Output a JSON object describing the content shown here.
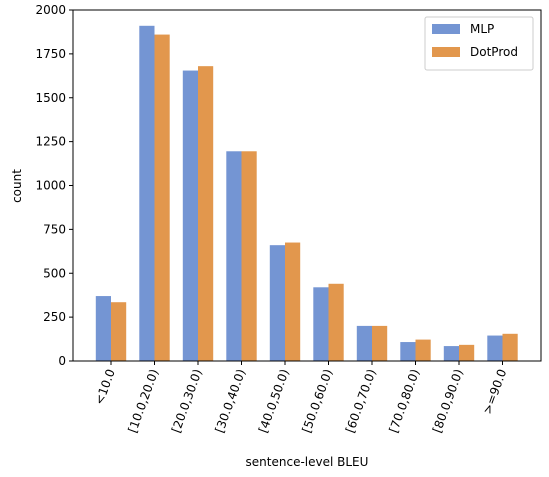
{
  "chart_data": {
    "type": "bar",
    "xlabel": "sentence-level BLEU",
    "ylabel": "count",
    "ylim": [
      0,
      2000
    ],
    "yticks": [
      0,
      250,
      500,
      750,
      1000,
      1250,
      1500,
      1750,
      2000
    ],
    "categories": [
      "<10.0",
      "[10.0,20.0)",
      "[20.0,30.0)",
      "[30.0,40.0)",
      "[40.0,50.0)",
      "[50.0,60.0)",
      "[60.0,70.0)",
      "[70.0,80.0)",
      "[80.0,90.0)",
      ">=90.0"
    ],
    "series": [
      {
        "name": "MLP",
        "color": "#7495d3",
        "values": [
          370,
          1910,
          1655,
          1195,
          660,
          420,
          200,
          108,
          85,
          145
        ]
      },
      {
        "name": "DotProd",
        "color": "#e2974d",
        "values": [
          335,
          1860,
          1680,
          1195,
          675,
          440,
          200,
          122,
          92,
          155
        ]
      }
    ],
    "grid": false,
    "legend_position": "top-right"
  }
}
